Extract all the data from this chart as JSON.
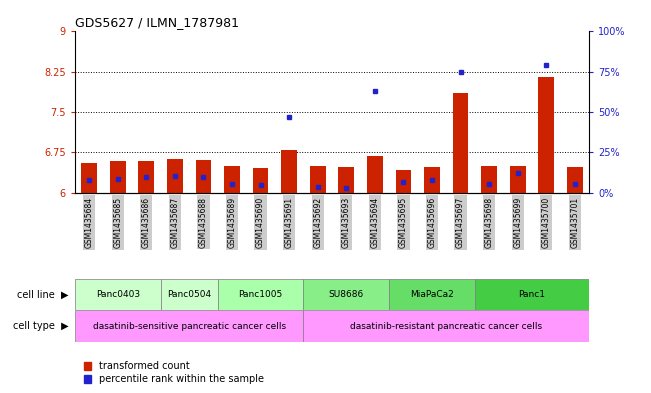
{
  "title": "GDS5627 / ILMN_1787981",
  "samples": [
    "GSM1435684",
    "GSM1435685",
    "GSM1435686",
    "GSM1435687",
    "GSM1435688",
    "GSM1435689",
    "GSM1435690",
    "GSM1435691",
    "GSM1435692",
    "GSM1435693",
    "GSM1435694",
    "GSM1435695",
    "GSM1435696",
    "GSM1435697",
    "GSM1435698",
    "GSM1435699",
    "GSM1435700",
    "GSM1435701"
  ],
  "red_values": [
    6.55,
    6.58,
    6.58,
    6.62,
    6.6,
    6.5,
    6.45,
    6.8,
    6.5,
    6.48,
    6.68,
    6.42,
    6.47,
    7.85,
    6.5,
    6.5,
    8.15,
    6.47
  ],
  "blue_values": [
    8.0,
    8.5,
    9.5,
    10.5,
    9.5,
    5.5,
    4.5,
    47.0,
    3.5,
    3.0,
    63.0,
    6.5,
    7.5,
    75.0,
    5.5,
    12.0,
    79.0,
    5.5
  ],
  "ylim_left": [
    6,
    9
  ],
  "ylim_right": [
    0,
    100
  ],
  "yticks_left": [
    6,
    6.75,
    7.5,
    8.25,
    9
  ],
  "yticks_right": [
    0,
    25,
    50,
    75,
    100
  ],
  "ytick_labels_left": [
    "6",
    "6.75",
    "7.5",
    "8.25",
    "9"
  ],
  "ytick_labels_right": [
    "0%",
    "25%",
    "50%",
    "75%",
    "100%"
  ],
  "dotted_lines": [
    6.75,
    7.5,
    8.25
  ],
  "cell_line_groups": [
    {
      "label": "Panc0403",
      "start": 0,
      "end": 2,
      "color": "#ccffcc"
    },
    {
      "label": "Panc0504",
      "start": 3,
      "end": 4,
      "color": "#ccffcc"
    },
    {
      "label": "Panc1005",
      "start": 5,
      "end": 7,
      "color": "#aaffaa"
    },
    {
      "label": "SU8686",
      "start": 8,
      "end": 10,
      "color": "#88ee88"
    },
    {
      "label": "MiaPaCa2",
      "start": 11,
      "end": 13,
      "color": "#66dd66"
    },
    {
      "label": "Panc1",
      "start": 14,
      "end": 17,
      "color": "#44cc44"
    }
  ],
  "cell_type_groups": [
    {
      "label": "dasatinib-sensitive pancreatic cancer cells",
      "start": 0,
      "end": 7,
      "color": "#ff99ff"
    },
    {
      "label": "dasatinib-resistant pancreatic cancer cells",
      "start": 8,
      "end": 17,
      "color": "#ff99ff"
    }
  ],
  "bar_width": 0.55,
  "bar_color_red": "#cc2200",
  "bar_color_blue": "#2222cc",
  "tick_bg_color": "#cccccc",
  "legend_red": "transformed count",
  "legend_blue": "percentile rank within the sample"
}
